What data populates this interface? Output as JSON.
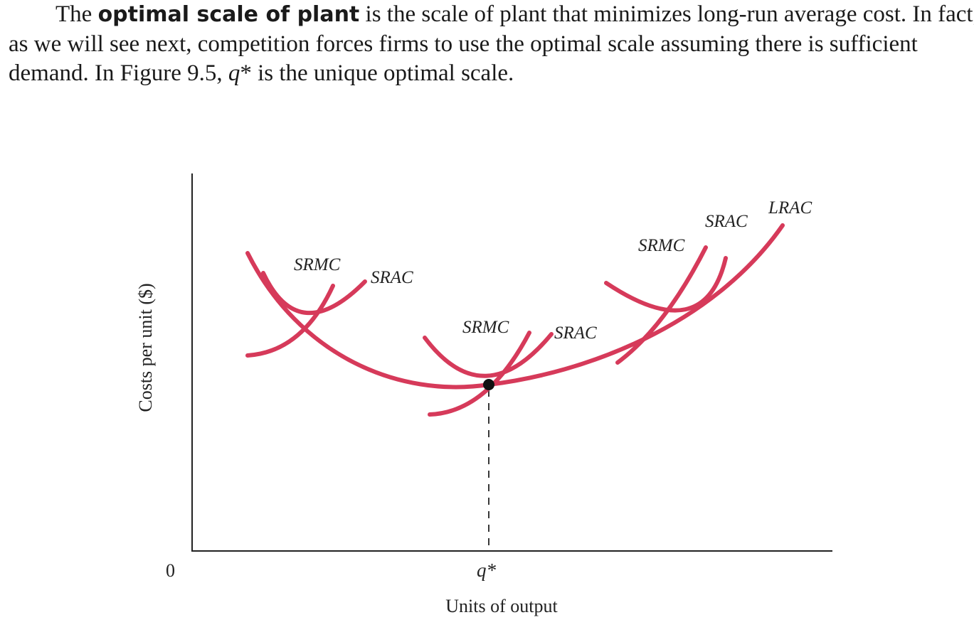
{
  "paragraph": {
    "line1_pre": "The ",
    "line1_bold": "optimal scale of plant",
    "line1_post": " is the scale of plant that minimizes long-run average cost. In fact,",
    "line2": "as we will see next, competition forces firms to use the optimal scale assuming there is sufficient",
    "line3_pre": "demand. In Figure 9.5, ",
    "line3_italic": "q",
    "line3_post": "* is the unique optimal scale."
  },
  "figure": {
    "ylabel": "Costs per unit ($)",
    "xlabel": "Units of output",
    "origin_label": "0",
    "qstar_label": "q*",
    "labels": {
      "srmc_left": "SRMC",
      "srac_left": "SRAC",
      "srmc_mid": "SRMC",
      "srac_mid": "SRAC",
      "srmc_right": "SRMC",
      "srac_right": "SRAC",
      "lrac": "LRAC"
    },
    "curve_color": "#d63a5a",
    "point_color": "#111111"
  },
  "chart_data": {
    "type": "line",
    "title": "",
    "xlabel": "Units of output",
    "ylabel": "Costs per unit ($)",
    "x_ticks": [
      "0",
      "q*"
    ],
    "series": [
      {
        "name": "LRAC"
      },
      {
        "name": "SRAC"
      },
      {
        "name": "SRMC"
      }
    ],
    "annotations": [
      "q*"
    ],
    "grid": false
  }
}
